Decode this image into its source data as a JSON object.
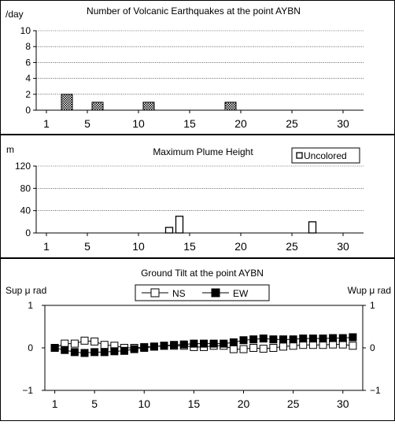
{
  "chart_data": [
    {
      "type": "bar",
      "title": "Number of Volcanic Earthquakes at the point AYBN",
      "ylabel": "/day",
      "xlabel": "",
      "xlim": [
        0,
        32
      ],
      "ylim": [
        0,
        10
      ],
      "y_ticks": [
        0,
        2,
        4,
        6,
        8,
        10
      ],
      "x_ticks": [
        1,
        5,
        10,
        15,
        20,
        25,
        30
      ],
      "grid": true,
      "bar_fill": "checkered",
      "x": [
        3,
        6,
        11,
        19
      ],
      "values": [
        2,
        1,
        1,
        1
      ]
    },
    {
      "type": "bar",
      "title": "Maximum Plume Height",
      "ylabel": "m",
      "xlabel": "",
      "xlim": [
        0,
        32
      ],
      "ylim": [
        0,
        120
      ],
      "y_ticks": [
        0,
        40,
        80,
        120
      ],
      "x_ticks": [
        1,
        5,
        10,
        15,
        20,
        25,
        30
      ],
      "grid": true,
      "legend": {
        "placement": "top-right",
        "entries": [
          "Uncolored"
        ]
      },
      "x": [
        13,
        14,
        27
      ],
      "values": [
        10,
        30,
        20
      ]
    },
    {
      "type": "line",
      "title": "Ground Tilt at the point AYBN",
      "ylabel_left": "Sup μ rad",
      "ylabel_right": "Wup μ rad",
      "xlim": [
        0,
        32
      ],
      "ylim": [
        -1,
        1
      ],
      "y_ticks": [
        -1,
        0,
        1
      ],
      "y_tick_labels": [
        "−1",
        "0",
        "1"
      ],
      "x_ticks": [
        1,
        5,
        10,
        15,
        20,
        25,
        30
      ],
      "legend": {
        "placement": "top-center"
      },
      "x": [
        1,
        2,
        3,
        4,
        5,
        6,
        7,
        8,
        9,
        10,
        11,
        12,
        13,
        14,
        15,
        16,
        17,
        18,
        19,
        20,
        21,
        22,
        23,
        24,
        25,
        26,
        27,
        28,
        29,
        30,
        31
      ],
      "series": [
        {
          "name": "NS",
          "marker": "open-square",
          "values": [
            0.0,
            0.1,
            0.1,
            0.17,
            0.15,
            0.07,
            0.05,
            0.0,
            0.0,
            0.02,
            0.03,
            0.05,
            0.05,
            0.05,
            0.02,
            0.02,
            0.05,
            0.05,
            -0.03,
            -0.03,
            0.0,
            -0.02,
            0.0,
            0.03,
            0.05,
            0.07,
            0.07,
            0.07,
            0.08,
            0.08,
            0.05
          ]
        },
        {
          "name": "EW",
          "marker": "filled-square",
          "values": [
            0.0,
            -0.05,
            -0.1,
            -0.12,
            -0.1,
            -0.1,
            -0.08,
            -0.07,
            -0.03,
            0.0,
            0.03,
            0.05,
            0.07,
            0.08,
            0.1,
            0.1,
            0.1,
            0.1,
            0.13,
            0.18,
            0.2,
            0.22,
            0.2,
            0.2,
            0.2,
            0.22,
            0.22,
            0.22,
            0.23,
            0.23,
            0.25
          ]
        }
      ]
    }
  ]
}
